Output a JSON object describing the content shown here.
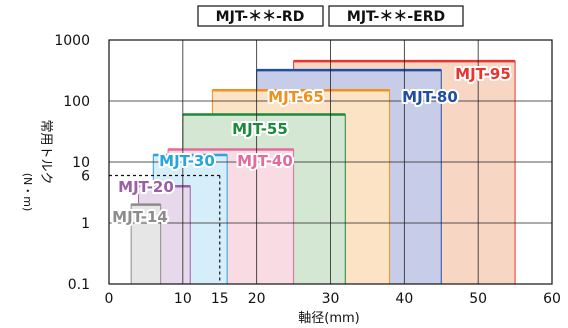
{
  "chart_data": {
    "type": "bar",
    "header_labels": [
      "MJT-＊＊-RD",
      "MJT-＊＊-ERD"
    ],
    "xlabel": "軸径(mm)",
    "ylabel_main": "常用トルク",
    "ylabel_unit": "(N・m)",
    "xlim": [
      0,
      60
    ],
    "ylim": [
      0.1,
      1000
    ],
    "yscale": "log",
    "grid": true,
    "x_ticks": [
      "0",
      "10",
      "15",
      "20",
      "30",
      "40",
      "50",
      "60"
    ],
    "x_tick_values": [
      0,
      10,
      15,
      20,
      30,
      40,
      50,
      60
    ],
    "y_ticks": [
      "0.1",
      "1",
      "6",
      "10",
      "100",
      "1000"
    ],
    "y_tick_values": [
      0.1,
      1,
      6,
      10,
      100,
      1000
    ],
    "guide_point": {
      "x": 15,
      "y": 6
    },
    "series": [
      {
        "name": "MJT-95",
        "bore_min": 25,
        "bore_max": 55,
        "torque": 450,
        "color": "#e8352e",
        "fill": "#f8d6c4"
      },
      {
        "name": "MJT-80",
        "bore_min": 20,
        "bore_max": 45,
        "torque": 320,
        "color": "#1f4ea3",
        "fill": "#c7cde9"
      },
      {
        "name": "MJT-65",
        "bore_min": 14,
        "bore_max": 38,
        "torque": 150,
        "color": "#f0901e",
        "fill": "#fde3c6"
      },
      {
        "name": "MJT-55",
        "bore_min": 10,
        "bore_max": 32,
        "torque": 60,
        "color": "#1b8a3c",
        "fill": "#d4e7d2"
      },
      {
        "name": "MJT-40",
        "bore_min": 8,
        "bore_max": 25,
        "torque": 16,
        "color": "#e46a9a",
        "fill": "#f9dbe3"
      },
      {
        "name": "MJT-30",
        "bore_min": 6,
        "bore_max": 16,
        "torque": 13,
        "color": "#25a6de",
        "fill": "#d6eef9"
      },
      {
        "name": "MJT-20",
        "bore_min": 4,
        "bore_max": 11,
        "torque": 4,
        "color": "#9b5fa8",
        "fill": "#e8d8ec"
      },
      {
        "name": "MJT-14",
        "bore_min": 3,
        "bore_max": 7,
        "torque": 2,
        "color": "#8c8c8c",
        "fill": "#e6e6e6"
      }
    ]
  }
}
